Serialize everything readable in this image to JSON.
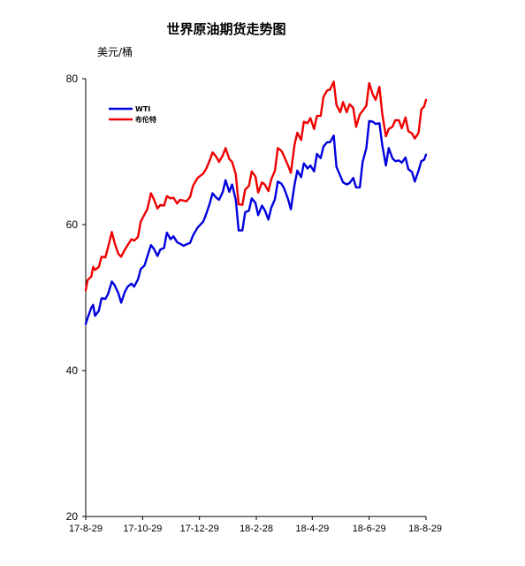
{
  "chart_data": {
    "type": "line",
    "title": "世界原油期货走势图",
    "ylabel": "美元/桶",
    "xlabel": "",
    "ylim": [
      20,
      80
    ],
    "yticks": [
      20,
      40,
      60,
      80
    ],
    "xlim": [
      "2017-08-29",
      "2018-08-29"
    ],
    "xticks": [
      {
        "date": "2017-08-29",
        "label": "17-8-29"
      },
      {
        "date": "2017-10-29",
        "label": "17-10-29"
      },
      {
        "date": "2017-12-29",
        "label": "17-12-29"
      },
      {
        "date": "2018-02-28",
        "label": "18-2-28"
      },
      {
        "date": "2018-04-29",
        "label": "18-4-29"
      },
      {
        "date": "2018-06-29",
        "label": "18-6-29"
      },
      {
        "date": "2018-08-29",
        "label": "18-8-29"
      }
    ],
    "grid": false,
    "legend_position": "top-left",
    "series": [
      {
        "name": "WTI",
        "color": "#0000dd",
        "points": [
          [
            "2017-08-29",
            46.4
          ],
          [
            "2017-08-31",
            47.2
          ],
          [
            "2017-09-04",
            48.6
          ],
          [
            "2017-09-06",
            49.0
          ],
          [
            "2017-09-08",
            47.5
          ],
          [
            "2017-09-12",
            48.2
          ],
          [
            "2017-09-15",
            49.9
          ],
          [
            "2017-09-19",
            49.8
          ],
          [
            "2017-09-22",
            50.5
          ],
          [
            "2017-09-26",
            52.2
          ],
          [
            "2017-09-29",
            51.7
          ],
          [
            "2017-10-03",
            50.6
          ],
          [
            "2017-10-06",
            49.3
          ],
          [
            "2017-10-10",
            50.8
          ],
          [
            "2017-10-13",
            51.5
          ],
          [
            "2017-10-17",
            51.9
          ],
          [
            "2017-10-20",
            51.5
          ],
          [
            "2017-10-24",
            52.5
          ],
          [
            "2017-10-27",
            53.9
          ],
          [
            "2017-10-31",
            54.4
          ],
          [
            "2017-11-03",
            55.6
          ],
          [
            "2017-11-07",
            57.2
          ],
          [
            "2017-11-10",
            56.7
          ],
          [
            "2017-11-14",
            55.7
          ],
          [
            "2017-11-17",
            56.6
          ],
          [
            "2017-11-21",
            56.8
          ],
          [
            "2017-11-24",
            58.9
          ],
          [
            "2017-11-28",
            58.0
          ],
          [
            "2017-12-01",
            58.4
          ],
          [
            "2017-12-05",
            57.6
          ],
          [
            "2017-12-08",
            57.4
          ],
          [
            "2017-12-12",
            57.1
          ],
          [
            "2017-12-15",
            57.3
          ],
          [
            "2017-12-19",
            57.5
          ],
          [
            "2017-12-22",
            58.5
          ],
          [
            "2017-12-27",
            59.6
          ],
          [
            "2018-01-02",
            60.4
          ],
          [
            "2018-01-05",
            61.4
          ],
          [
            "2018-01-09",
            62.9
          ],
          [
            "2018-01-12",
            64.3
          ],
          [
            "2018-01-16",
            63.7
          ],
          [
            "2018-01-19",
            63.4
          ],
          [
            "2018-01-23",
            64.5
          ],
          [
            "2018-01-26",
            66.1
          ],
          [
            "2018-01-30",
            64.5
          ],
          [
            "2018-02-02",
            65.5
          ],
          [
            "2018-02-06",
            63.4
          ],
          [
            "2018-02-09",
            59.2
          ],
          [
            "2018-02-13",
            59.2
          ],
          [
            "2018-02-16",
            61.7
          ],
          [
            "2018-02-20",
            61.9
          ],
          [
            "2018-02-23",
            63.6
          ],
          [
            "2018-02-27",
            63.0
          ],
          [
            "2018-03-02",
            61.3
          ],
          [
            "2018-03-06",
            62.6
          ],
          [
            "2018-03-09",
            62.0
          ],
          [
            "2018-03-13",
            60.7
          ],
          [
            "2018-03-16",
            62.3
          ],
          [
            "2018-03-20",
            63.5
          ],
          [
            "2018-03-23",
            65.9
          ],
          [
            "2018-03-27",
            65.6
          ],
          [
            "2018-03-30",
            64.9
          ],
          [
            "2018-04-03",
            63.5
          ],
          [
            "2018-04-06",
            62.1
          ],
          [
            "2018-04-10",
            65.5
          ],
          [
            "2018-04-13",
            67.4
          ],
          [
            "2018-04-17",
            66.5
          ],
          [
            "2018-04-20",
            68.4
          ],
          [
            "2018-04-24",
            67.7
          ],
          [
            "2018-04-27",
            68.1
          ],
          [
            "2018-05-01",
            67.3
          ],
          [
            "2018-05-04",
            69.7
          ],
          [
            "2018-05-08",
            69.1
          ],
          [
            "2018-05-11",
            70.7
          ],
          [
            "2018-05-15",
            71.3
          ],
          [
            "2018-05-18",
            71.3
          ],
          [
            "2018-05-22",
            72.2
          ],
          [
            "2018-05-25",
            67.9
          ],
          [
            "2018-05-29",
            66.7
          ],
          [
            "2018-06-01",
            65.8
          ],
          [
            "2018-06-05",
            65.5
          ],
          [
            "2018-06-08",
            65.7
          ],
          [
            "2018-06-12",
            66.4
          ],
          [
            "2018-06-15",
            65.1
          ],
          [
            "2018-06-19",
            65.1
          ],
          [
            "2018-06-22",
            68.6
          ],
          [
            "2018-06-26",
            70.5
          ],
          [
            "2018-06-29",
            74.2
          ],
          [
            "2018-07-03",
            74.1
          ],
          [
            "2018-07-06",
            73.8
          ],
          [
            "2018-07-10",
            73.9
          ],
          [
            "2018-07-13",
            71.0
          ],
          [
            "2018-07-17",
            68.1
          ],
          [
            "2018-07-20",
            70.5
          ],
          [
            "2018-07-24",
            69.1
          ],
          [
            "2018-07-27",
            68.7
          ],
          [
            "2018-07-31",
            68.8
          ],
          [
            "2018-08-03",
            68.5
          ],
          [
            "2018-08-07",
            69.2
          ],
          [
            "2018-08-10",
            67.6
          ],
          [
            "2018-08-14",
            67.2
          ],
          [
            "2018-08-17",
            65.9
          ],
          [
            "2018-08-21",
            67.4
          ],
          [
            "2018-08-24",
            68.7
          ],
          [
            "2018-08-27",
            68.9
          ],
          [
            "2018-08-29",
            69.6
          ]
        ]
      },
      {
        "name": "布伦特",
        "color": "#ee0000",
        "points": [
          [
            "2017-08-29",
            51.0
          ],
          [
            "2017-08-31",
            52.4
          ],
          [
            "2017-09-04",
            52.9
          ],
          [
            "2017-09-06",
            54.2
          ],
          [
            "2017-09-08",
            53.8
          ],
          [
            "2017-09-12",
            54.2
          ],
          [
            "2017-09-15",
            55.6
          ],
          [
            "2017-09-19",
            55.5
          ],
          [
            "2017-09-22",
            56.9
          ],
          [
            "2017-09-26",
            59.0
          ],
          [
            "2017-09-29",
            57.5
          ],
          [
            "2017-10-03",
            56.0
          ],
          [
            "2017-10-06",
            55.6
          ],
          [
            "2017-10-10",
            56.6
          ],
          [
            "2017-10-13",
            57.2
          ],
          [
            "2017-10-17",
            58.0
          ],
          [
            "2017-10-20",
            57.8
          ],
          [
            "2017-10-24",
            58.3
          ],
          [
            "2017-10-27",
            60.4
          ],
          [
            "2017-10-31",
            61.4
          ],
          [
            "2017-11-03",
            62.1
          ],
          [
            "2017-11-07",
            64.3
          ],
          [
            "2017-11-10",
            63.5
          ],
          [
            "2017-11-14",
            62.2
          ],
          [
            "2017-11-17",
            62.7
          ],
          [
            "2017-11-21",
            62.6
          ],
          [
            "2017-11-24",
            63.9
          ],
          [
            "2017-11-28",
            63.6
          ],
          [
            "2017-12-01",
            63.7
          ],
          [
            "2017-12-05",
            62.9
          ],
          [
            "2017-12-08",
            63.4
          ],
          [
            "2017-12-12",
            63.3
          ],
          [
            "2017-12-15",
            63.2
          ],
          [
            "2017-12-19",
            63.8
          ],
          [
            "2017-12-22",
            65.3
          ],
          [
            "2017-12-27",
            66.4
          ],
          [
            "2018-01-02",
            67.0
          ],
          [
            "2018-01-05",
            67.6
          ],
          [
            "2018-01-09",
            68.8
          ],
          [
            "2018-01-12",
            69.9
          ],
          [
            "2018-01-16",
            69.3
          ],
          [
            "2018-01-19",
            68.6
          ],
          [
            "2018-01-23",
            69.5
          ],
          [
            "2018-01-26",
            70.5
          ],
          [
            "2018-01-30",
            69.0
          ],
          [
            "2018-02-02",
            68.6
          ],
          [
            "2018-02-06",
            66.9
          ],
          [
            "2018-02-09",
            62.8
          ],
          [
            "2018-02-13",
            62.7
          ],
          [
            "2018-02-16",
            64.8
          ],
          [
            "2018-02-20",
            65.3
          ],
          [
            "2018-02-23",
            67.3
          ],
          [
            "2018-02-27",
            66.6
          ],
          [
            "2018-03-02",
            64.4
          ],
          [
            "2018-03-06",
            65.8
          ],
          [
            "2018-03-09",
            65.5
          ],
          [
            "2018-03-13",
            64.6
          ],
          [
            "2018-03-16",
            66.2
          ],
          [
            "2018-03-20",
            67.4
          ],
          [
            "2018-03-23",
            70.5
          ],
          [
            "2018-03-27",
            70.1
          ],
          [
            "2018-03-30",
            69.3
          ],
          [
            "2018-04-03",
            68.1
          ],
          [
            "2018-04-06",
            67.1
          ],
          [
            "2018-04-10",
            71.0
          ],
          [
            "2018-04-13",
            72.6
          ],
          [
            "2018-04-17",
            71.6
          ],
          [
            "2018-04-20",
            74.1
          ],
          [
            "2018-04-24",
            73.9
          ],
          [
            "2018-04-27",
            74.6
          ],
          [
            "2018-05-01",
            73.1
          ],
          [
            "2018-05-04",
            74.9
          ],
          [
            "2018-05-08",
            74.9
          ],
          [
            "2018-05-11",
            77.5
          ],
          [
            "2018-05-15",
            78.4
          ],
          [
            "2018-05-18",
            78.5
          ],
          [
            "2018-05-22",
            79.6
          ],
          [
            "2018-05-25",
            76.4
          ],
          [
            "2018-05-29",
            75.4
          ],
          [
            "2018-06-01",
            76.8
          ],
          [
            "2018-06-05",
            75.4
          ],
          [
            "2018-06-08",
            76.5
          ],
          [
            "2018-06-12",
            76.0
          ],
          [
            "2018-06-15",
            73.4
          ],
          [
            "2018-06-19",
            75.1
          ],
          [
            "2018-06-22",
            75.6
          ],
          [
            "2018-06-26",
            76.3
          ],
          [
            "2018-06-29",
            79.4
          ],
          [
            "2018-07-03",
            77.8
          ],
          [
            "2018-07-06",
            77.1
          ],
          [
            "2018-07-10",
            78.9
          ],
          [
            "2018-07-13",
            75.3
          ],
          [
            "2018-07-17",
            72.1
          ],
          [
            "2018-07-20",
            73.1
          ],
          [
            "2018-07-24",
            73.4
          ],
          [
            "2018-07-27",
            74.3
          ],
          [
            "2018-07-31",
            74.3
          ],
          [
            "2018-08-03",
            73.2
          ],
          [
            "2018-08-07",
            74.7
          ],
          [
            "2018-08-10",
            72.8
          ],
          [
            "2018-08-14",
            72.5
          ],
          [
            "2018-08-17",
            71.8
          ],
          [
            "2018-08-21",
            72.6
          ],
          [
            "2018-08-24",
            75.8
          ],
          [
            "2018-08-27",
            76.2
          ],
          [
            "2018-08-29",
            77.1
          ]
        ]
      }
    ]
  }
}
